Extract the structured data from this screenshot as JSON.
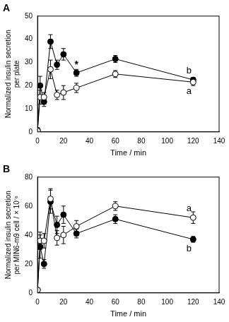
{
  "chart_data": [
    {
      "type": "line",
      "title": "A",
      "x_label": "Time / min",
      "y_label": [
        "Normalized insulin secretion",
        "per plate"
      ],
      "xlim": [
        0,
        140
      ],
      "xticks": [
        0,
        20,
        40,
        60,
        80,
        100,
        120,
        140
      ],
      "ylim": [
        0,
        50
      ],
      "yticks": [
        0,
        10,
        20,
        30,
        40,
        50
      ],
      "legend": "none",
      "grid": false,
      "annotations": [
        {
          "x": 30,
          "y": 29,
          "text": "*"
        }
      ],
      "series": [
        {
          "name": "a",
          "color": "#000000",
          "marker": "open circle",
          "line_style": "solid",
          "x": [
            0,
            2,
            5,
            10,
            15,
            20,
            30,
            60,
            120
          ],
          "values": [
            0.5,
            15,
            15,
            27,
            16,
            17,
            19,
            25,
            21.5
          ],
          "errors": [
            0.3,
            3,
            2,
            4,
            2,
            3,
            2,
            1.5,
            1.5
          ]
        },
        {
          "name": "b",
          "color": "#000000",
          "marker": "filled circle",
          "line_style": "solid",
          "x": [
            0,
            2,
            5,
            10,
            15,
            20,
            30,
            60,
            120
          ],
          "values": [
            0.8,
            20,
            13,
            39,
            29,
            33.5,
            25.5,
            31.5,
            22.5
          ],
          "errors": [
            0.3,
            4,
            2,
            3,
            2,
            2.5,
            1.5,
            1.5,
            1
          ]
        }
      ]
    },
    {
      "type": "line",
      "title": "B",
      "x_label": "Time / min",
      "y_label": [
        "Normalized insulin secretion",
        "per MIN6-m9 cell / × 10⁻⁶"
      ],
      "xlim": [
        0,
        140
      ],
      "xticks": [
        0,
        20,
        40,
        60,
        80,
        100,
        120,
        140
      ],
      "ylim": [
        0,
        80
      ],
      "yticks": [
        0,
        20,
        40,
        60,
        80
      ],
      "legend": "none",
      "grid": false,
      "series": [
        {
          "name": "a",
          "color": "#000000",
          "marker": "open circle",
          "line_style": "solid",
          "x": [
            0,
            2,
            5,
            10,
            15,
            20,
            30,
            60,
            120
          ],
          "values": [
            2,
            36,
            36,
            65,
            38,
            40,
            46,
            60,
            52
          ],
          "errors": [
            0.5,
            6,
            5,
            7,
            5,
            6,
            4,
            3,
            4
          ]
        },
        {
          "name": "b",
          "color": "#000000",
          "marker": "filled circle",
          "line_style": "solid",
          "x": [
            0,
            2,
            5,
            10,
            15,
            20,
            30,
            60,
            120
          ],
          "values": [
            2,
            32,
            20,
            63,
            47,
            54,
            41,
            51,
            37
          ],
          "errors": [
            0.5,
            8,
            3,
            8,
            6,
            6,
            3,
            3,
            2
          ]
        }
      ]
    }
  ]
}
